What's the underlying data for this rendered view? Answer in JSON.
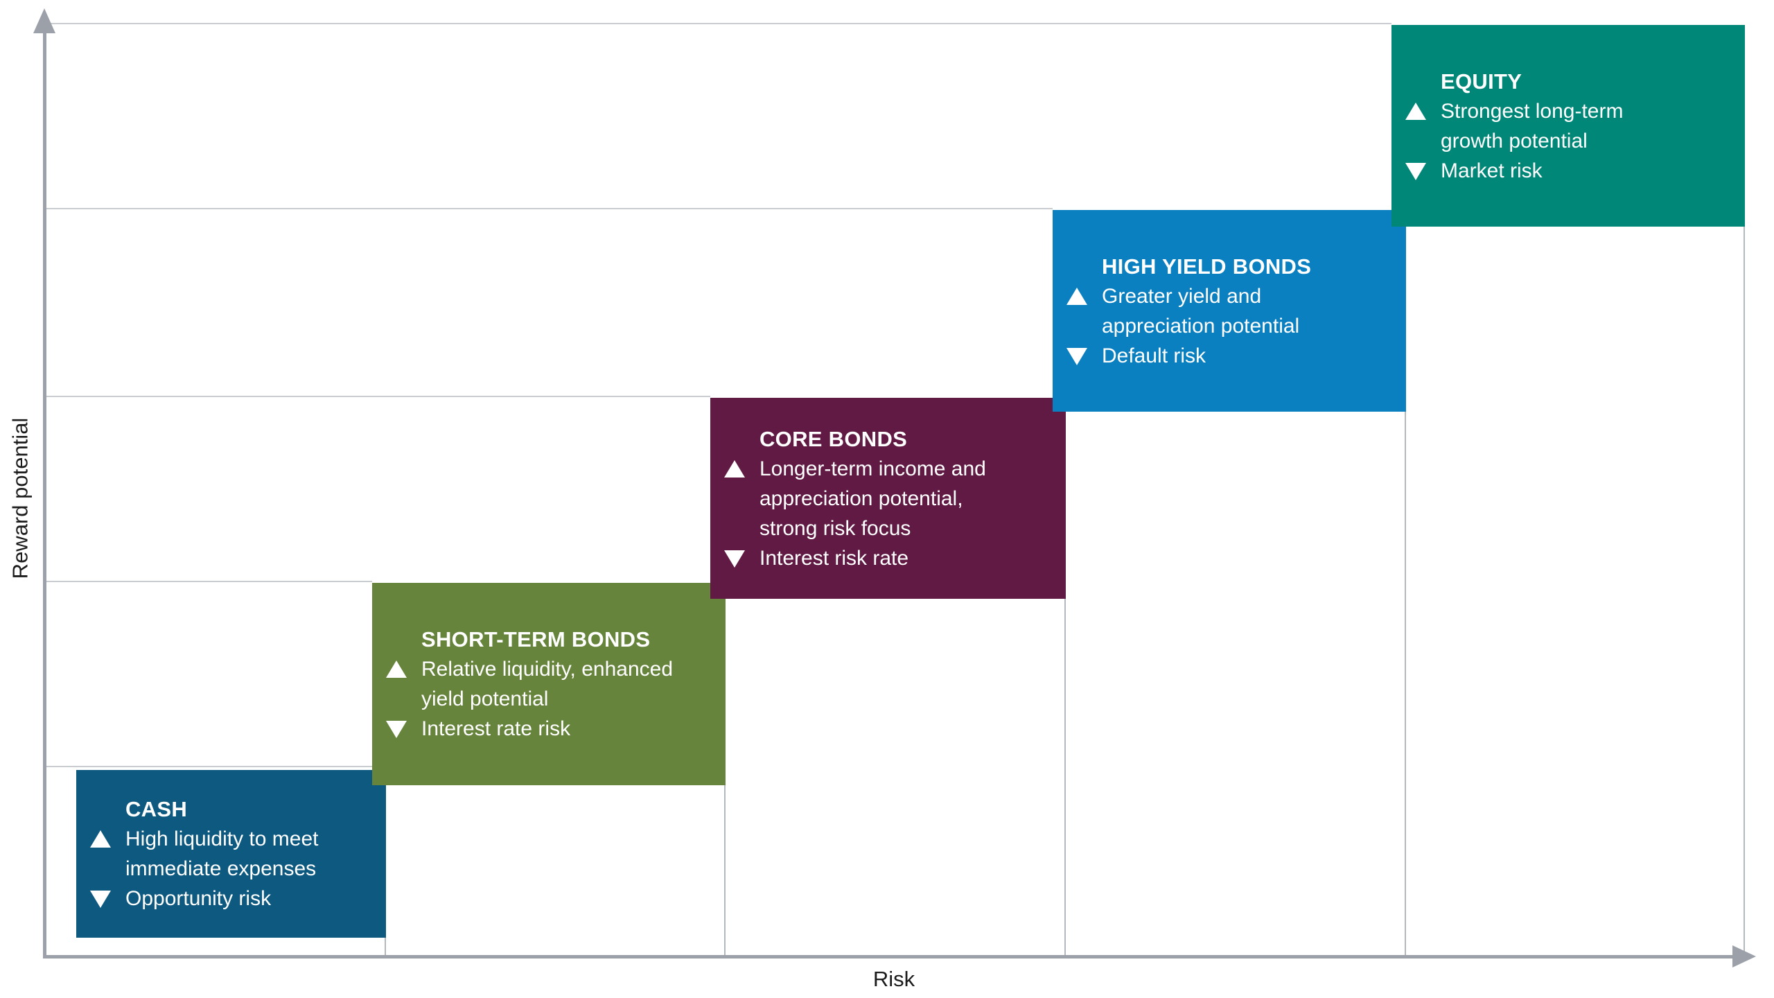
{
  "axes": {
    "y_label": "Reward potential",
    "x_label": "Risk",
    "axis_color": "#9CA1A9",
    "gridline_color": "#C9CCD1",
    "dropline_color": "#B3B7BE",
    "tick_labels": "none"
  },
  "boxes": [
    {
      "id": "cash",
      "title": "CASH",
      "pro": [
        "High liquidity to meet",
        "immediate expenses"
      ],
      "con": [
        "Opportunity risk"
      ],
      "color": "#0D5980"
    },
    {
      "id": "short-term-bonds",
      "title": "SHORT-TERM BONDS",
      "pro": [
        "Relative liquidity, enhanced",
        "yield potential"
      ],
      "con": [
        "Interest rate risk"
      ],
      "color": "#67843C"
    },
    {
      "id": "core-bonds",
      "title": "CORE BONDS",
      "pro": [
        "Longer-term income and",
        "appreciation potential,",
        "strong risk focus"
      ],
      "con": [
        "Interest risk rate"
      ],
      "color": "#601A44"
    },
    {
      "id": "high-yield-bonds",
      "title": "HIGH YIELD BONDS",
      "pro": [
        "Greater yield and",
        "appreciation potential"
      ],
      "con": [
        "Default risk"
      ],
      "color": "#0B80C1"
    },
    {
      "id": "equity",
      "title": "EQUITY",
      "pro": [
        "Strongest long-term",
        "growth potential"
      ],
      "con": [
        "Market risk"
      ],
      "color": "#008778"
    }
  ],
  "chart_data": {
    "type": "stairstep",
    "title": "",
    "xlabel": "Risk",
    "ylabel": "Reward potential",
    "categories": [
      "Cash",
      "Short-term bonds",
      "Core bonds",
      "High yield bonds",
      "Equity"
    ],
    "series": [
      {
        "name": "Risk rank",
        "values": [
          1,
          2,
          3,
          4,
          5
        ]
      },
      {
        "name": "Reward potential rank",
        "values": [
          1,
          2,
          3,
          4,
          5
        ]
      }
    ],
    "colors": [
      "#0D5980",
      "#67843C",
      "#601A44",
      "#0B80C1",
      "#008778"
    ],
    "axis_ranges": "ordinal, no numeric ticks",
    "grid": "horizontal gridline at each step top, vertical drop line at each step right edge",
    "legend": "none",
    "annotations": [
      {
        "category": "Cash",
        "advantage": "High liquidity to meet immediate expenses",
        "risk": "Opportunity risk"
      },
      {
        "category": "Short-term bonds",
        "advantage": "Relative liquidity, enhanced yield potential",
        "risk": "Interest rate risk"
      },
      {
        "category": "Core bonds",
        "advantage": "Longer-term income and appreciation potential, strong risk focus",
        "risk": "Interest risk rate"
      },
      {
        "category": "High yield bonds",
        "advantage": "Greater yield and appreciation potential",
        "risk": "Default risk"
      },
      {
        "category": "Equity",
        "advantage": "Strongest long-term growth potential",
        "risk": "Market risk"
      }
    ]
  }
}
